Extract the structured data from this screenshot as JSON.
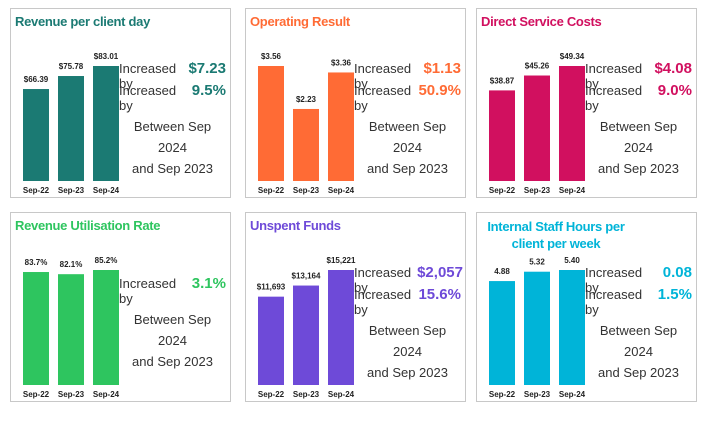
{
  "chart_data": [
    {
      "type": "bar",
      "title": "Revenue per client day",
      "color": "#1b7a73",
      "categories": [
        "Sep-22",
        "Sep-23",
        "Sep-24"
      ],
      "values": [
        66.39,
        75.78,
        83.01
      ],
      "value_labels": [
        "$66.39",
        "$75.78",
        "$83.01"
      ],
      "annotations": [
        {
          "text": "Increased by",
          "value": "$7.23"
        },
        {
          "text": "Increased by",
          "value": "9.5%"
        }
      ],
      "note": [
        "Between Sep 2024",
        "and Sep 2023"
      ]
    },
    {
      "type": "bar",
      "title": "Operating Result",
      "color": "#ff6b35",
      "categories": [
        "Sep-22",
        "Sep-23",
        "Sep-24"
      ],
      "values": [
        3.56,
        2.23,
        3.36
      ],
      "value_labels": [
        "$3.56",
        "$2.23",
        "$3.36"
      ],
      "annotations": [
        {
          "text": "Increased by",
          "value": "$1.13"
        },
        {
          "text": "Increased by",
          "value": "50.9%"
        }
      ],
      "note": [
        "Between Sep 2024",
        "and Sep 2023"
      ]
    },
    {
      "type": "bar",
      "title": "Direct Service Costs",
      "color": "#d1105f",
      "categories": [
        "Sep-22",
        "Sep-23",
        "Sep-24"
      ],
      "values": [
        38.87,
        45.26,
        49.34
      ],
      "value_labels": [
        "$38.87",
        "$45.26",
        "$49.34"
      ],
      "annotations": [
        {
          "text": "Increased by",
          "value": "$4.08"
        },
        {
          "text": "Increased by",
          "value": "9.0%"
        }
      ],
      "note": [
        "Between Sep 2024",
        "and Sep 2023"
      ]
    },
    {
      "type": "bar",
      "title": "Revenue Utilisation Rate",
      "color": "#2ec55f",
      "categories": [
        "Sep-22",
        "Sep-23",
        "Sep-24"
      ],
      "values": [
        83.7,
        82.1,
        85.2
      ],
      "value_labels": [
        "83.7%",
        "82.1%",
        "85.2%"
      ],
      "annotations": [
        {
          "text": "Increased by",
          "value": "3.1%"
        }
      ],
      "note": [
        "Between Sep 2024",
        "and Sep 2023"
      ]
    },
    {
      "type": "bar",
      "title": "Unspent Funds",
      "color": "#6e4ad8",
      "categories": [
        "Sep-22",
        "Sep-23",
        "Sep-24"
      ],
      "values": [
        11693,
        13164,
        15221
      ],
      "value_labels": [
        "$11,693",
        "$13,164",
        "$15,221"
      ],
      "annotations": [
        {
          "text": "Increased by",
          "value": "$2,057"
        },
        {
          "text": "Increased by",
          "value": "15.6%"
        }
      ],
      "note": [
        "Between Sep 2024",
        "and Sep 2023"
      ]
    },
    {
      "type": "bar",
      "title": "Internal Staff Hours per client per week",
      "color": "#00b4d8",
      "categories": [
        "Sep-22",
        "Sep-23",
        "Sep-24"
      ],
      "values": [
        4.88,
        5.32,
        5.4
      ],
      "value_labels": [
        "4.88",
        "5.32",
        "5.40"
      ],
      "annotations": [
        {
          "text": "Increased by",
          "value": "0.08"
        },
        {
          "text": "Increased by",
          "value": "1.5%"
        }
      ],
      "note": [
        "Between Sep 2024",
        "and Sep 2023"
      ]
    }
  ]
}
